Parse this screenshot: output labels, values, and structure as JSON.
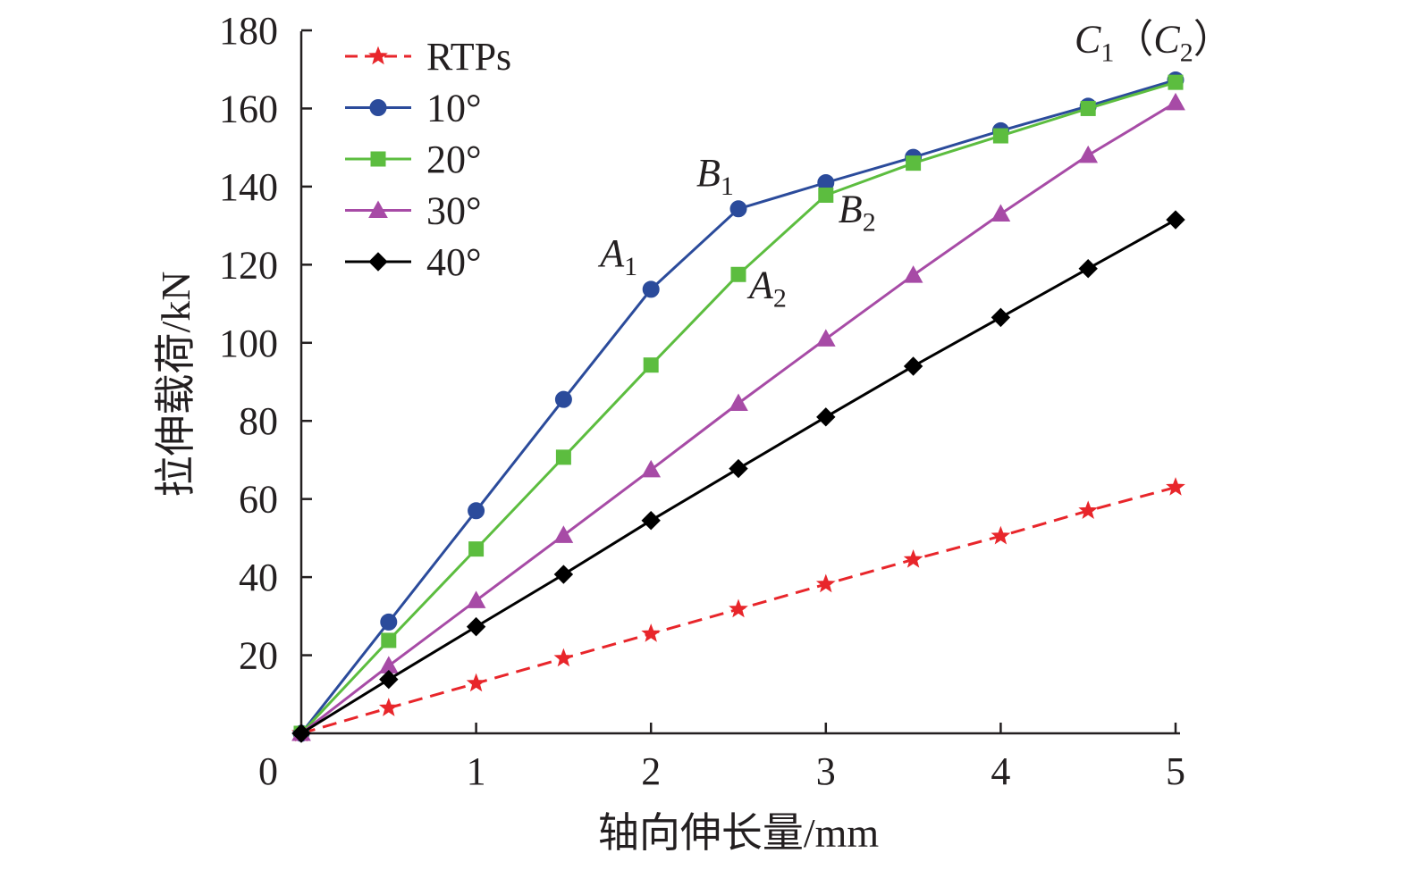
{
  "chart_data": {
    "type": "line",
    "xlabel": "轴向伸长量/mm",
    "ylabel": "拉伸载荷/kN",
    "xlim": [
      0,
      5
    ],
    "ylim": [
      0,
      180
    ],
    "origin_label": "0",
    "xticks": [
      1,
      2,
      3,
      4,
      5
    ],
    "yticks": [
      20,
      40,
      60,
      80,
      100,
      120,
      140,
      160,
      180
    ],
    "grid": false,
    "legend_position": "top-left",
    "x": [
      0,
      0.5,
      1,
      1.5,
      2,
      2.5,
      3,
      3.5,
      4,
      4.5,
      5
    ],
    "series": [
      {
        "name": "RTPs",
        "color": "#e8262b",
        "marker": "star",
        "dash": true,
        "values": [
          0,
          6.5,
          12.8,
          19.2,
          25.5,
          31.8,
          38.2,
          44.5,
          50.5,
          57,
          63
        ]
      },
      {
        "name": "10°",
        "color": "#2b4b9b",
        "marker": "circle",
        "dash": false,
        "values": [
          0,
          28.5,
          57,
          85.5,
          113.7,
          134.3,
          141,
          147.5,
          154.3,
          160.6,
          167.3
        ]
      },
      {
        "name": "20°",
        "color": "#5cbd3f",
        "marker": "square",
        "dash": false,
        "values": [
          0,
          23.8,
          47.2,
          70.7,
          94.3,
          117.5,
          137.8,
          146,
          153,
          160,
          166.7
        ]
      },
      {
        "name": "30°",
        "color": "#a74ba6",
        "marker": "triangle",
        "dash": false,
        "values": [
          0,
          17.3,
          34,
          50.7,
          67.5,
          84.5,
          101,
          117.3,
          133,
          148,
          161.5
        ]
      },
      {
        "name": "40°",
        "color": "#000000",
        "marker": "diamond",
        "dash": false,
        "values": [
          0,
          13.8,
          27.3,
          40.7,
          54.5,
          67.8,
          81,
          94,
          106.5,
          119,
          131.5
        ]
      }
    ],
    "annotations": [
      {
        "label": "A",
        "sub": "1",
        "x": 2,
        "y": 113.7
      },
      {
        "label": "B",
        "sub": "1",
        "x": 2.5,
        "y": 134.3
      },
      {
        "label": "A",
        "sub": "2",
        "x": 2.5,
        "y": 117.5
      },
      {
        "label": "B",
        "sub": "2",
        "x": 3,
        "y": 137.8
      },
      {
        "label": "C",
        "sub": "1",
        "label2": "C",
        "sub2": "2",
        "x": 5,
        "y": 167.3
      }
    ]
  }
}
